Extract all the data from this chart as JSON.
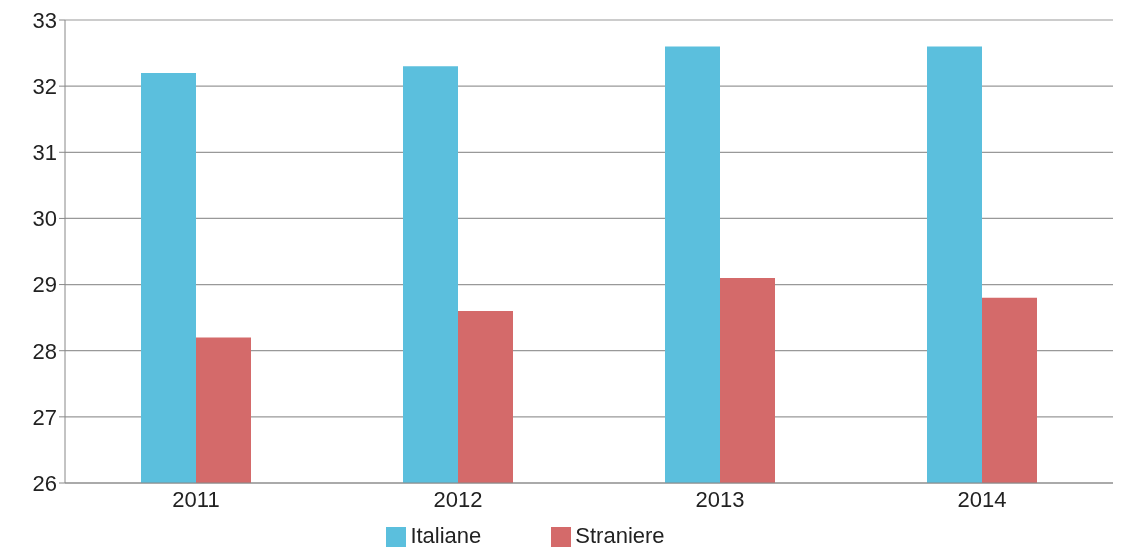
{
  "chart_data": {
    "type": "bar",
    "categories": [
      "2011",
      "2012",
      "2013",
      "2014"
    ],
    "series": [
      {
        "name": "Italiane",
        "color": "#5bbfdd",
        "values": [
          32.2,
          32.3,
          32.6,
          32.6
        ]
      },
      {
        "name": "Straniere",
        "color": "#d46a6a",
        "values": [
          28.2,
          28.6,
          29.1,
          28.8
        ]
      }
    ],
    "ylim": [
      26,
      33
    ],
    "yticks": [
      26,
      27,
      28,
      29,
      30,
      31,
      32,
      33
    ],
    "grid": "y",
    "legend": "bottom"
  }
}
